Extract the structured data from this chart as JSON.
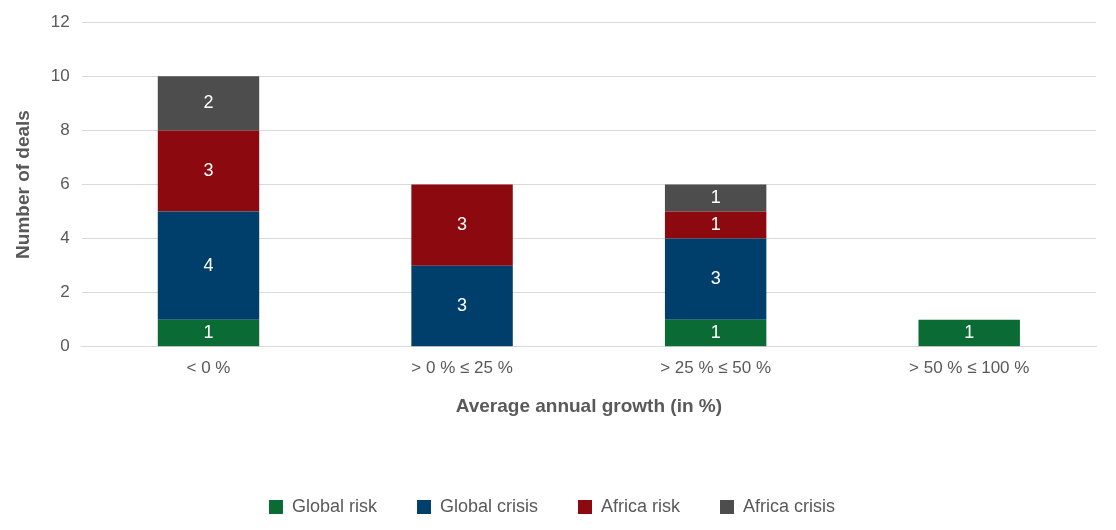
{
  "chart_data": {
    "type": "bar",
    "stacked": true,
    "categories": [
      "< 0 %",
      "> 0 % ≤ 25 %",
      "> 25 % ≤ 50 %",
      "> 50 % ≤ 100 %"
    ],
    "xlabel": "Average annual growth (in %)",
    "ylabel": "Number of deals",
    "ylim": [
      0,
      12
    ],
    "yticks": [
      0,
      2,
      4,
      6,
      8,
      10,
      12
    ],
    "grid": "y",
    "legend": "bottom",
    "data_labels": true,
    "series": [
      {
        "name": "Global risk",
        "color": "#0b6b35",
        "values": [
          1,
          null,
          1,
          1
        ]
      },
      {
        "name": "Global crisis",
        "color": "#003f6b",
        "values": [
          4,
          3,
          3,
          null
        ]
      },
      {
        "name": "Africa risk",
        "color": "#8c0a0f",
        "values": [
          3,
          3,
          1,
          null
        ]
      },
      {
        "name": "Africa crisis",
        "color": "#4d4d4d",
        "values": [
          2,
          null,
          1,
          null
        ]
      }
    ]
  }
}
